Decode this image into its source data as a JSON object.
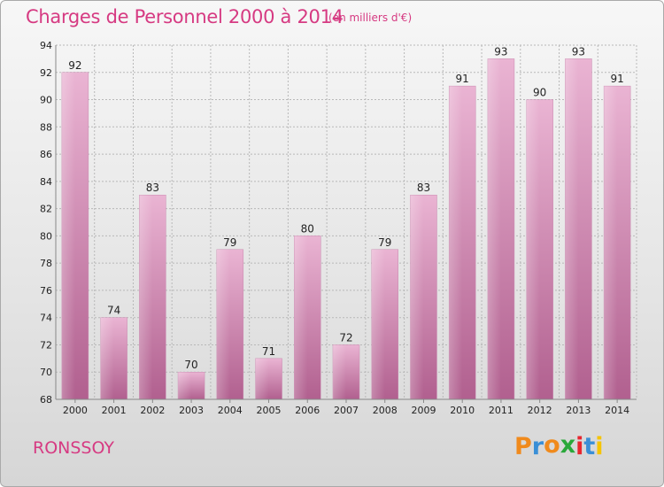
{
  "header": {
    "title": "Charges de Personnel 2000 à 2014",
    "subtitle": "(en milliers d'€)"
  },
  "footer": {
    "commune": "RONSSOY",
    "logo": "Proxiti",
    "logo_colors": [
      "#f08a1c",
      "#3a8fd6",
      "#f08a1c",
      "#2aa83a",
      "#e8262f",
      "#3a8fd6",
      "#f5c400"
    ]
  },
  "colors": {
    "bar_light": "#e9b1d2",
    "bar_dark": "#b36594",
    "grid": "#b8b8b8",
    "axis_text": "#222222",
    "accent": "#d63a82"
  },
  "chart_data": {
    "type": "bar",
    "title": "Charges de Personnel 2000 à 2014",
    "subtitle": "(en milliers d'€)",
    "xlabel": "",
    "ylabel": "",
    "categories": [
      "2000",
      "2001",
      "2002",
      "2003",
      "2004",
      "2005",
      "2006",
      "2007",
      "2008",
      "2009",
      "2010",
      "2011",
      "2012",
      "2013",
      "2014"
    ],
    "values": [
      92,
      74,
      83,
      70,
      79,
      71,
      80,
      72,
      79,
      83,
      91,
      93,
      90,
      93,
      91
    ],
    "ylim": [
      68,
      94
    ],
    "yticks": [
      68,
      70,
      72,
      74,
      76,
      78,
      80,
      82,
      84,
      86,
      88,
      90,
      92,
      94
    ],
    "grid": true,
    "data_labels": true
  }
}
